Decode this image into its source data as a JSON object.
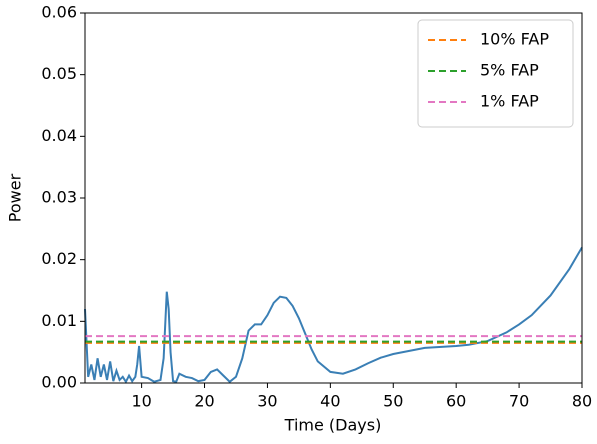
{
  "chart_data": {
    "type": "line",
    "xlabel": "Time (Days)",
    "ylabel": "Power",
    "x": [
      1,
      1.5,
      2,
      2.5,
      3,
      3.5,
      4,
      4.5,
      5,
      5.5,
      6,
      6.5,
      7,
      7.5,
      8,
      8.5,
      9,
      9.3,
      9.6,
      10,
      11,
      12,
      13,
      13.5,
      14,
      14.3,
      14.6,
      15,
      15.5,
      16,
      17,
      18,
      19,
      20,
      21,
      22,
      23,
      24,
      25,
      26,
      27,
      28,
      29,
      30,
      31,
      32,
      33,
      34,
      35,
      36,
      37,
      38,
      40,
      42,
      44,
      46,
      48,
      50,
      55,
      60,
      62,
      65,
      68,
      70,
      72,
      75,
      78,
      80
    ],
    "series": [
      {
        "color": "#3a7fb5",
        "values": [
          0.012,
          0.001,
          0.003,
          0.0005,
          0.004,
          0.001,
          0.003,
          0.0005,
          0.0035,
          0.0003,
          0.002,
          0.0005,
          0.001,
          0.0002,
          0.0012,
          0.0003,
          0.001,
          0.003,
          0.006,
          0.001,
          0.0008,
          0.0002,
          0.0005,
          0.004,
          0.0148,
          0.012,
          0.005,
          0.0003,
          0.0002,
          0.0015,
          0.001,
          0.0008,
          0.0003,
          0.0005,
          0.0018,
          0.0022,
          0.0012,
          0.0002,
          0.001,
          0.004,
          0.0085,
          0.0095,
          0.0095,
          0.011,
          0.013,
          0.014,
          0.0138,
          0.0125,
          0.0105,
          0.008,
          0.0055,
          0.0035,
          0.0018,
          0.0015,
          0.0022,
          0.0032,
          0.0041,
          0.0047,
          0.0057,
          0.006,
          0.0062,
          0.0068,
          0.0082,
          0.0095,
          0.011,
          0.0142,
          0.0185,
          0.022
        ]
      }
    ],
    "hlines": [
      {
        "name": "10% FAP",
        "color": "#ff7f0e",
        "value": 0.0065
      },
      {
        "name": "5% FAP",
        "color": "#2ca02c",
        "value": 0.0067
      },
      {
        "name": "1% FAP",
        "color": "#e377c2",
        "value": 0.0076
      }
    ],
    "xlim": [
      1,
      80
    ],
    "ylim": [
      0,
      0.06
    ],
    "xticks": [
      10,
      20,
      30,
      40,
      50,
      60,
      70,
      80
    ],
    "yticks": [
      {
        "value": 0,
        "label": "0.00"
      },
      0.01,
      0.02,
      0.03,
      0.04,
      0.05,
      0.06
    ],
    "legend": "upper right"
  }
}
